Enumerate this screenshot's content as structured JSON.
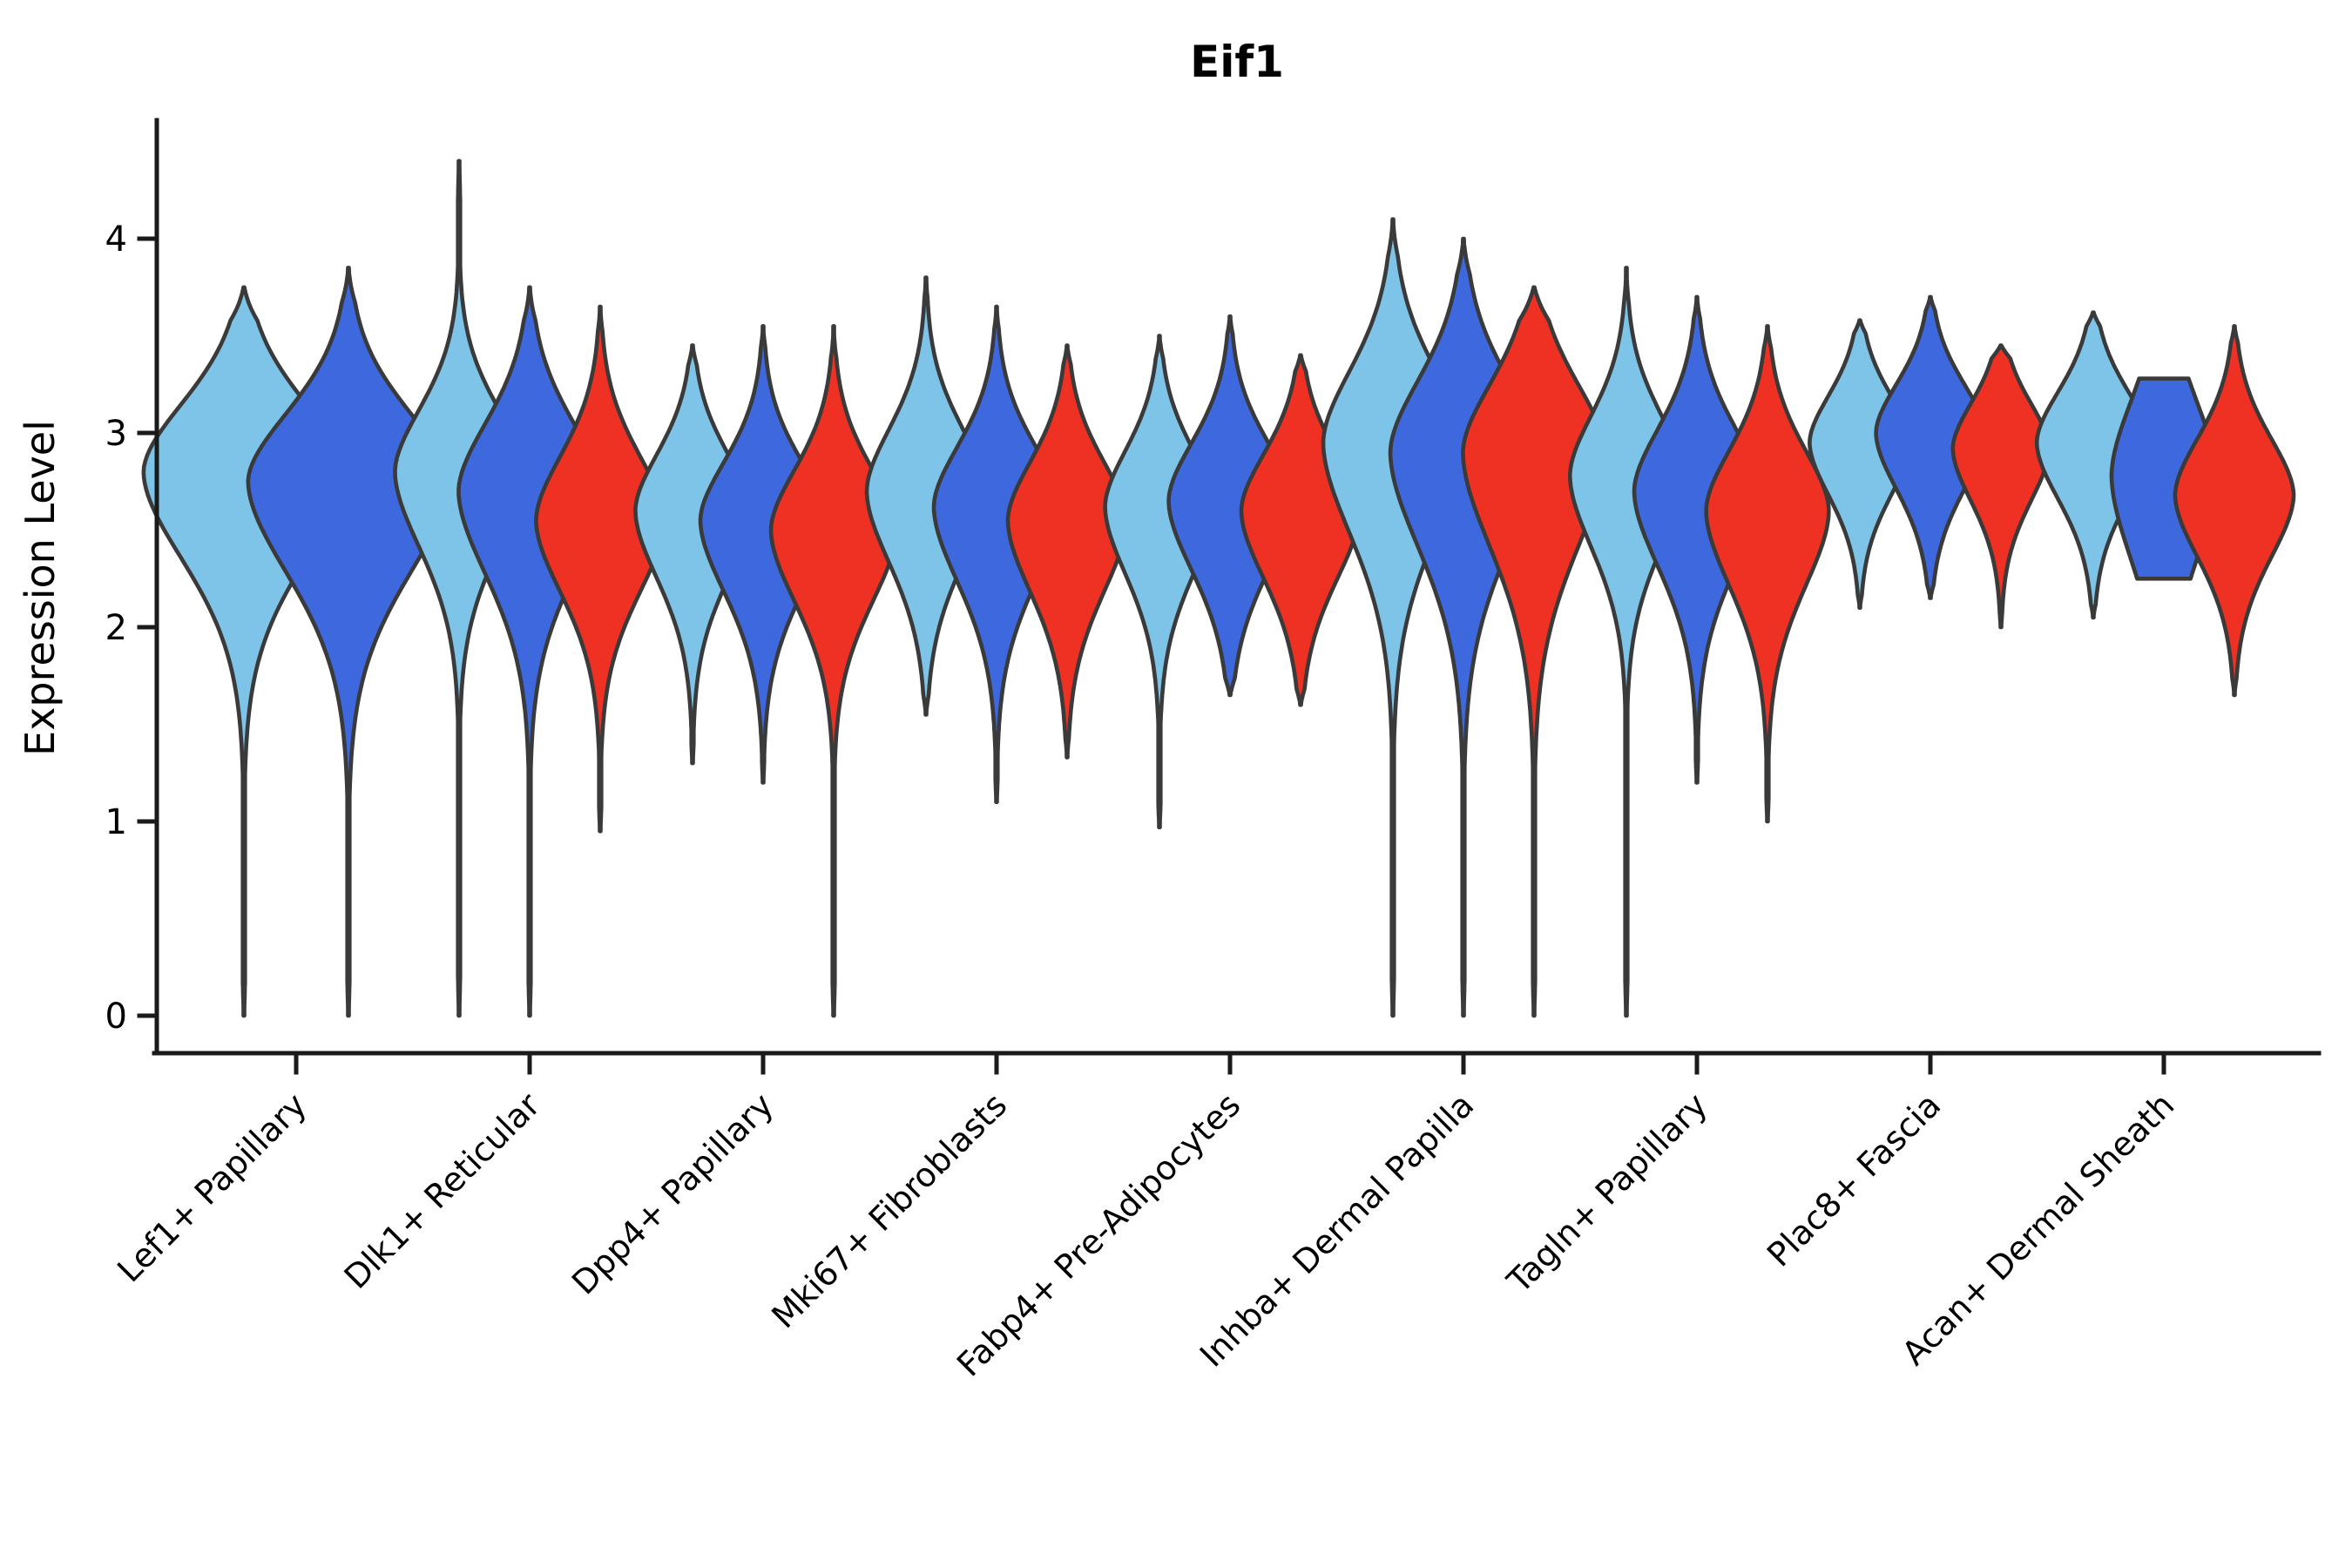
{
  "chart_data": {
    "type": "violin",
    "title": "Eif1",
    "xlabel": "",
    "ylabel": "Expression Level",
    "yticks": [
      0,
      1,
      2,
      3,
      4
    ],
    "ylim": [
      -0.19,
      4.62
    ],
    "grid": false,
    "legend": "none",
    "background_color": "#ffffff",
    "outline_color": "#3a3a3a",
    "axis_color": "#1a1a1a",
    "split_colors": [
      "#7ec4e8",
      "#3e68dd",
      "#ef3123"
    ],
    "split_color_names": [
      "light-blue",
      "royal-blue",
      "red"
    ],
    "categories": [
      "Lef1+ Papillary",
      "Dlk1+ Reticular",
      "Dpp4+ Papillary",
      "Mki67+ Fibroblasts",
      "Fabp4+ Pre-Adipocytes",
      "Inhba+ Dermal Papilla",
      "Tagln+ Papillary",
      "Plac8+ Fascia",
      "Acan+ Dermal Sheath"
    ],
    "violins": [
      {
        "category": "Lef1+ Papillary",
        "splits": [
          {
            "color": 0,
            "min": 0.0,
            "max": 3.75,
            "mode": 2.8,
            "rel_width": 1.44,
            "sigma_lower": 0.46,
            "sigma_upper": 0.36
          },
          {
            "color": 1,
            "min": 0.0,
            "max": 3.85,
            "mode": 2.75,
            "rel_width": 1.44,
            "sigma_lower": 0.48,
            "sigma_upper": 0.36
          }
        ]
      },
      {
        "category": "Dlk1+ Reticular",
        "splits": [
          {
            "color": 0,
            "min": 0.0,
            "max": 4.4,
            "mode": 2.8,
            "rel_width": 0.92,
            "sigma_lower": 0.4,
            "sigma_upper": 0.33
          },
          {
            "color": 1,
            "min": 0.0,
            "max": 3.75,
            "mode": 2.7,
            "rel_width": 1.02,
            "sigma_lower": 0.44,
            "sigma_upper": 0.36
          },
          {
            "color": 2,
            "min": 0.95,
            "max": 3.65,
            "mode": 2.55,
            "rel_width": 0.92,
            "sigma_lower": 0.38,
            "sigma_upper": 0.34
          }
        ]
      },
      {
        "category": "Dpp4+ Papillary",
        "splits": [
          {
            "color": 0,
            "min": 1.3,
            "max": 3.45,
            "mode": 2.6,
            "rel_width": 0.82,
            "sigma_lower": 0.36,
            "sigma_upper": 0.3
          },
          {
            "color": 1,
            "min": 1.2,
            "max": 3.55,
            "mode": 2.55,
            "rel_width": 0.9,
            "sigma_lower": 0.38,
            "sigma_upper": 0.31
          },
          {
            "color": 2,
            "min": 0.0,
            "max": 3.55,
            "mode": 2.5,
            "rel_width": 0.9,
            "sigma_lower": 0.38,
            "sigma_upper": 0.32
          }
        ]
      },
      {
        "category": "Mki67+ Fibroblasts",
        "splits": [
          {
            "color": 0,
            "min": 1.55,
            "max": 3.8,
            "mode": 2.7,
            "rel_width": 0.85,
            "sigma_lower": 0.38,
            "sigma_upper": 0.33
          },
          {
            "color": 1,
            "min": 1.1,
            "max": 3.65,
            "mode": 2.62,
            "rel_width": 0.9,
            "sigma_lower": 0.4,
            "sigma_upper": 0.32
          },
          {
            "color": 2,
            "min": 1.33,
            "max": 3.45,
            "mode": 2.55,
            "rel_width": 0.85,
            "sigma_lower": 0.38,
            "sigma_upper": 0.31
          }
        ]
      },
      {
        "category": "Fabp4+ Pre-Adipocytes",
        "splits": [
          {
            "color": 0,
            "min": 0.97,
            "max": 3.5,
            "mode": 2.62,
            "rel_width": 0.78,
            "sigma_lower": 0.36,
            "sigma_upper": 0.3
          },
          {
            "color": 1,
            "min": 1.65,
            "max": 3.6,
            "mode": 2.65,
            "rel_width": 0.88,
            "sigma_lower": 0.37,
            "sigma_upper": 0.31
          },
          {
            "color": 2,
            "min": 1.6,
            "max": 3.4,
            "mode": 2.6,
            "rel_width": 0.85,
            "sigma_lower": 0.36,
            "sigma_upper": 0.3
          }
        ]
      },
      {
        "category": "Inhba+ Dermal Papilla",
        "splits": [
          {
            "color": 0,
            "min": 0.0,
            "max": 4.1,
            "mode": 2.95,
            "rel_width": 1.0,
            "sigma_lower": 0.48,
            "sigma_upper": 0.38
          },
          {
            "color": 1,
            "min": 0.0,
            "max": 4.0,
            "mode": 2.9,
            "rel_width": 1.05,
            "sigma_lower": 0.5,
            "sigma_upper": 0.38
          },
          {
            "color": 2,
            "min": 0.0,
            "max": 3.75,
            "mode": 2.9,
            "rel_width": 1.02,
            "sigma_lower": 0.5,
            "sigma_upper": 0.36
          }
        ]
      },
      {
        "category": "Tagln+ Papillary",
        "splits": [
          {
            "color": 0,
            "min": 0.0,
            "max": 3.85,
            "mode": 2.78,
            "rel_width": 0.81,
            "sigma_lower": 0.38,
            "sigma_upper": 0.32
          },
          {
            "color": 1,
            "min": 1.2,
            "max": 3.7,
            "mode": 2.7,
            "rel_width": 0.9,
            "sigma_lower": 0.4,
            "sigma_upper": 0.33
          },
          {
            "color": 2,
            "min": 1.0,
            "max": 3.55,
            "mode": 2.6,
            "rel_width": 0.88,
            "sigma_lower": 0.4,
            "sigma_upper": 0.32
          }
        ]
      },
      {
        "category": "Plac8+ Fascia",
        "splits": [
          {
            "color": 0,
            "min": 2.1,
            "max": 3.58,
            "mode": 2.95,
            "rel_width": 0.72,
            "sigma_lower": 0.28,
            "sigma_upper": 0.25
          },
          {
            "color": 1,
            "min": 2.15,
            "max": 3.7,
            "mode": 3.0,
            "rel_width": 0.78,
            "sigma_lower": 0.3,
            "sigma_upper": 0.26
          },
          {
            "color": 2,
            "min": 2.0,
            "max": 3.45,
            "mode": 2.92,
            "rel_width": 0.69,
            "sigma_lower": 0.28,
            "sigma_upper": 0.24
          }
        ]
      },
      {
        "category": "Acan+ Dermal Sheath",
        "splits": [
          {
            "color": 0,
            "min": 2.05,
            "max": 3.62,
            "mode": 2.95,
            "rel_width": 0.81,
            "sigma_lower": 0.3,
            "sigma_upper": 0.27
          },
          {
            "color": 1,
            "min": 2.25,
            "max": 3.28,
            "mode": 2.78,
            "rel_width": 0.75,
            "sigma_lower": 0.45,
            "sigma_upper": 0.4,
            "flat_ends": true
          },
          {
            "color": 2,
            "min": 1.65,
            "max": 3.55,
            "mode": 2.68,
            "rel_width": 0.85,
            "sigma_lower": 0.33,
            "sigma_upper": 0.3
          }
        ]
      }
    ]
  }
}
